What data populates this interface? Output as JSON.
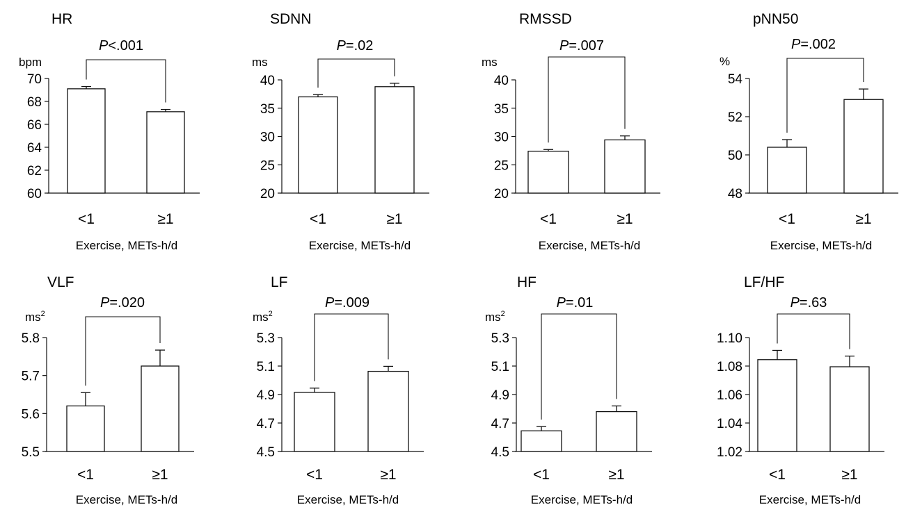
{
  "figure": {
    "xlabel": "Exercise, METs-h/d",
    "categories": [
      "<1",
      "≥1"
    ]
  },
  "chart_data": [
    {
      "type": "bar",
      "title": "HR",
      "unit": "bpm",
      "categories": [
        "<1",
        "≥1"
      ],
      "values": [
        69.1,
        67.1
      ],
      "errors": [
        0.2,
        0.2
      ],
      "ylim": [
        60,
        70
      ],
      "yticks": [
        "60",
        "62",
        "64",
        "66",
        "68",
        "70"
      ],
      "xlabel": "Exercise, METs-h/d",
      "p_label": "P",
      "p_value": "<.001",
      "grid": false
    },
    {
      "type": "bar",
      "title": "SDNN",
      "unit": "ms",
      "categories": [
        "<1",
        "≥1"
      ],
      "values": [
        37.0,
        38.8
      ],
      "errors": [
        0.4,
        0.6
      ],
      "ylim": [
        20,
        40
      ],
      "yticks": [
        "20",
        "25",
        "30",
        "35",
        "40"
      ],
      "xlabel": "Exercise, METs-h/d",
      "p_label": "P",
      "p_value": "=.02",
      "grid": false
    },
    {
      "type": "bar",
      "title": "RMSSD",
      "unit": "ms",
      "categories": [
        "<1",
        "≥1"
      ],
      "values": [
        27.4,
        29.4
      ],
      "errors": [
        0.3,
        0.7
      ],
      "ylim": [
        20,
        40
      ],
      "yticks": [
        "20",
        "25",
        "30",
        "35",
        "40"
      ],
      "xlabel": "Exercise, METs-h/d",
      "p_label": "P",
      "p_value": "=.007",
      "grid": false
    },
    {
      "type": "bar",
      "title": "pNN50",
      "unit": "%",
      "categories": [
        "<1",
        "≥1"
      ],
      "values": [
        50.4,
        52.9
      ],
      "errors": [
        0.4,
        0.55
      ],
      "ylim": [
        48,
        54
      ],
      "yticks": [
        "48",
        "50",
        "52",
        "54"
      ],
      "xlabel": "Exercise, METs-h/d",
      "p_label": "P",
      "p_value": "=.002",
      "grid": false
    },
    {
      "type": "bar",
      "title": "VLF",
      "unit": "ms²",
      "categories": [
        "<1",
        "≥1"
      ],
      "values": [
        5.62,
        5.725
      ],
      "errors": [
        0.035,
        0.042
      ],
      "ylim": [
        5.5,
        5.8
      ],
      "yticks": [
        "5.5",
        "5.6",
        "5.7",
        "5.8"
      ],
      "xlabel": "Exercise, METs-h/d",
      "p_label": "P",
      "p_value": "=.020",
      "grid": false
    },
    {
      "type": "bar",
      "title": "LF",
      "unit": "ms²",
      "categories": [
        "<1",
        "≥1"
      ],
      "values": [
        4.915,
        5.063
      ],
      "errors": [
        0.03,
        0.035
      ],
      "ylim": [
        4.5,
        5.3
      ],
      "yticks": [
        "4.5",
        "4.7",
        "4.9",
        "5.1",
        "5.3"
      ],
      "xlabel": "Exercise, METs-h/d",
      "p_label": "P",
      "p_value": "=.009",
      "grid": false
    },
    {
      "type": "bar",
      "title": "HF",
      "unit": "ms²",
      "categories": [
        "<1",
        "≥1"
      ],
      "values": [
        4.645,
        4.78
      ],
      "errors": [
        0.03,
        0.04
      ],
      "ylim": [
        4.5,
        5.3
      ],
      "yticks": [
        "4.5",
        "4.7",
        "4.9",
        "5.1",
        "5.3"
      ],
      "xlabel": "Exercise, METs-h/d",
      "p_label": "P",
      "p_value": "=.01",
      "grid": false
    },
    {
      "type": "bar",
      "title": "LF/HF",
      "unit": "",
      "categories": [
        "<1",
        "≥1"
      ],
      "values": [
        1.0845,
        1.0795
      ],
      "errors": [
        0.0065,
        0.0075
      ],
      "ylim": [
        1.02,
        1.1
      ],
      "yticks": [
        "1.02",
        "1.04",
        "1.06",
        "1.08",
        "1.10"
      ],
      "xlabel": "Exercise, METs-h/d",
      "p_label": "P",
      "p_value": "=.63",
      "grid": false
    }
  ]
}
